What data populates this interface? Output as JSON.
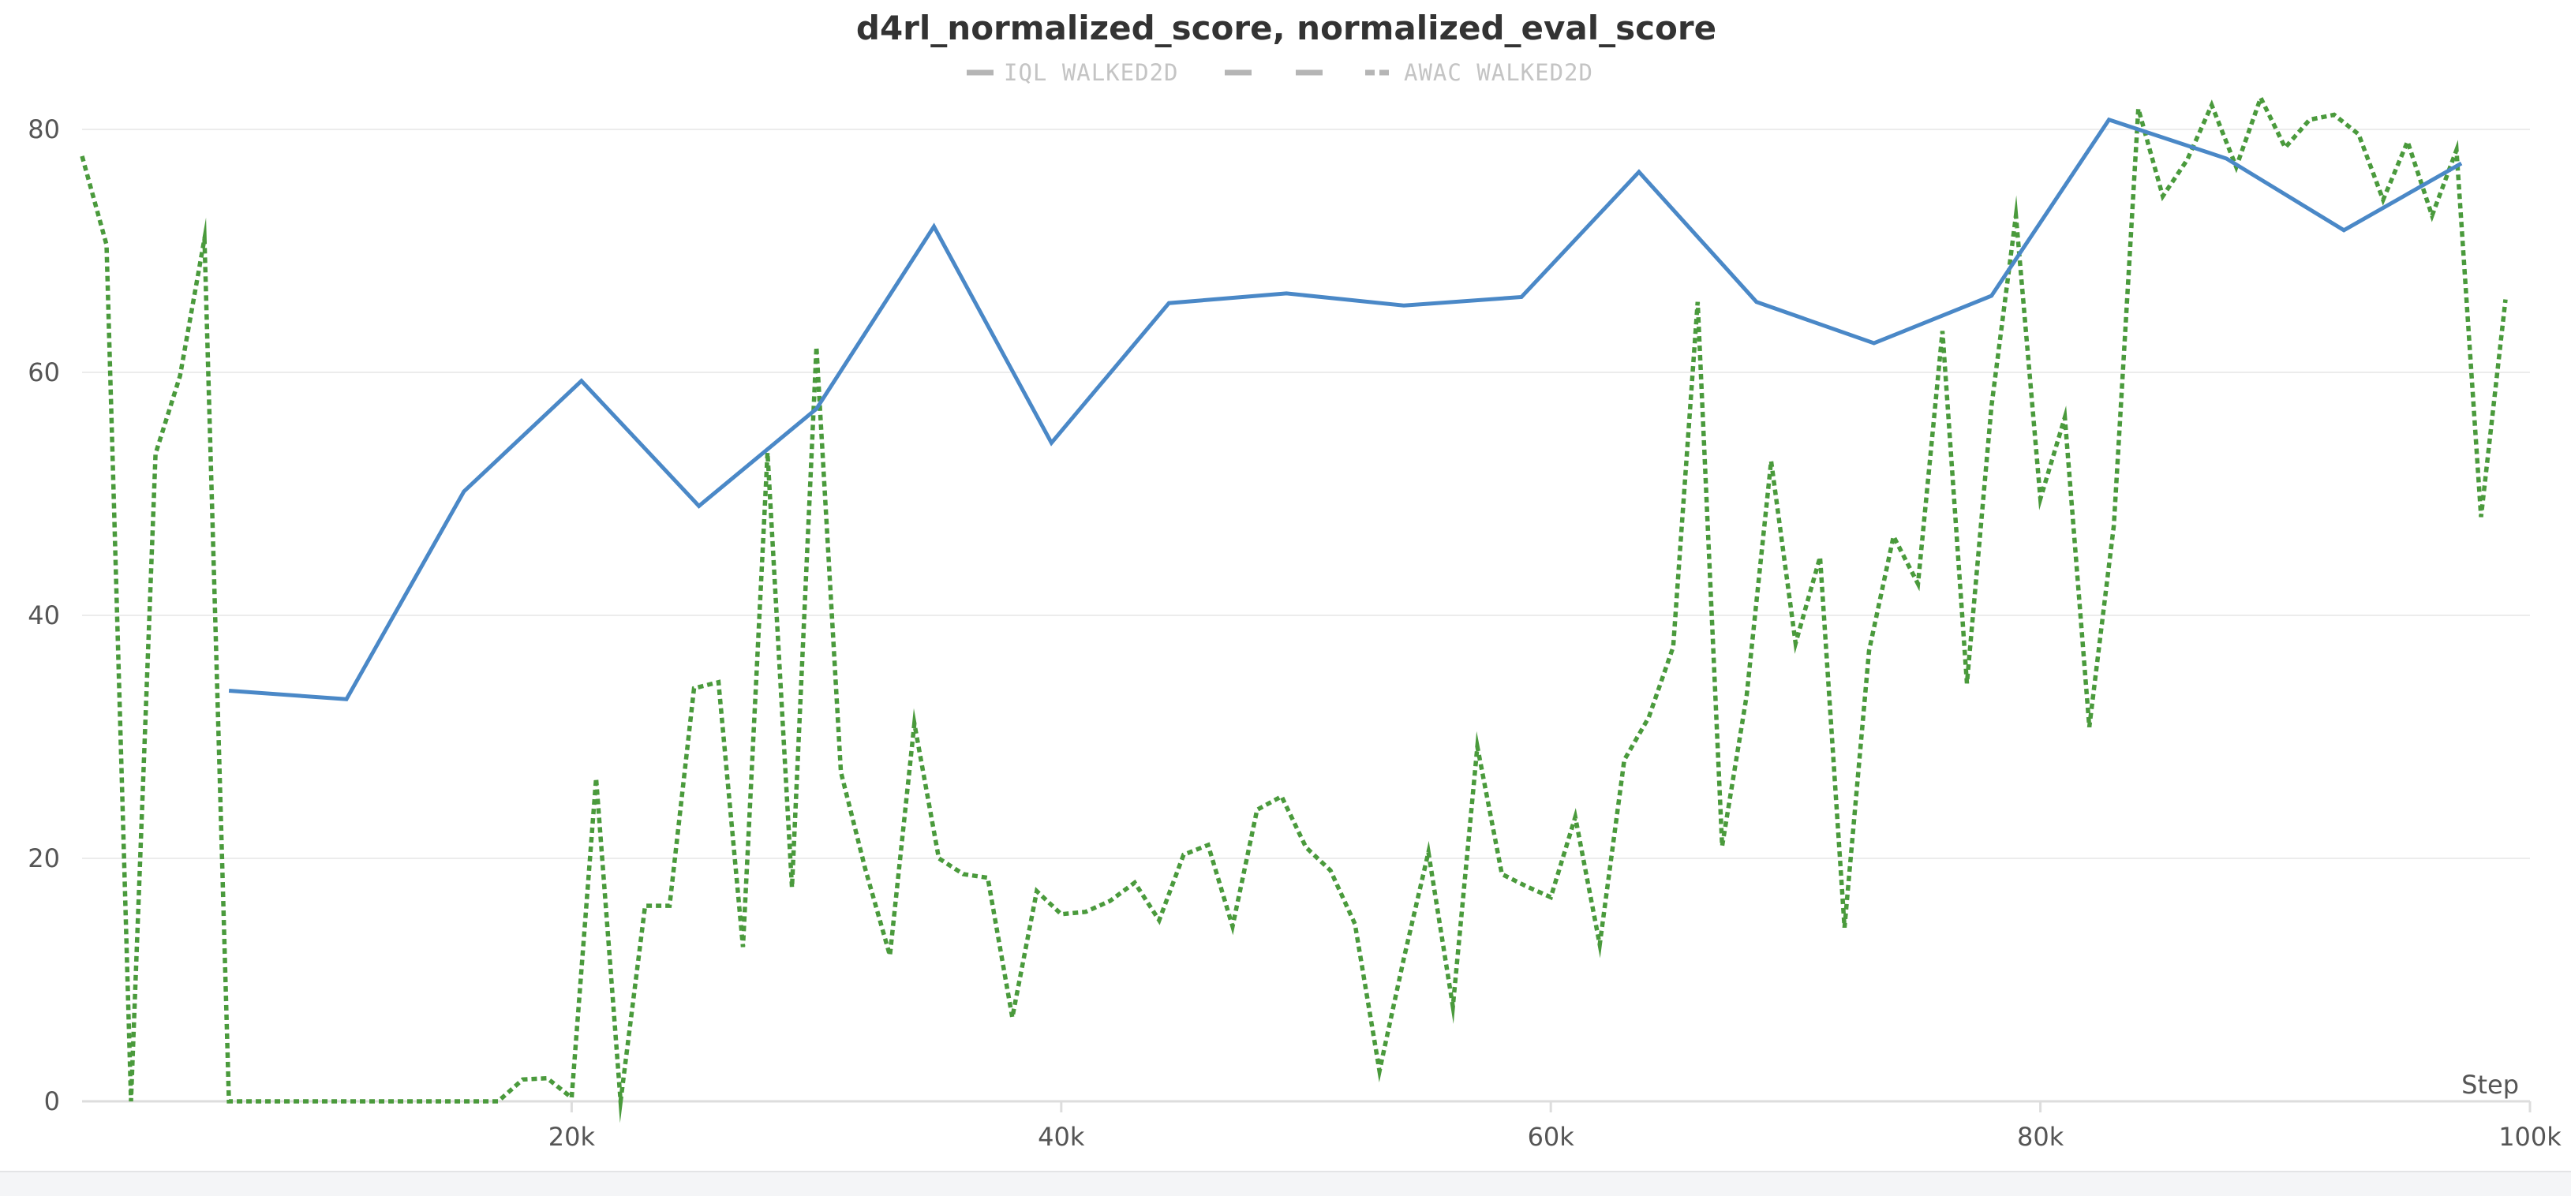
{
  "chart_data": {
    "type": "line",
    "title": "d4rl_normalized_score, normalized_eval_score",
    "xlabel": "Step",
    "ylabel": "",
    "xlim": [
      0,
      100000
    ],
    "ylim": [
      0,
      80
    ],
    "x_ticks": [
      20000,
      40000,
      60000,
      80000,
      100000
    ],
    "x_tick_labels": [
      "20k",
      "40k",
      "60k",
      "80k",
      "100k"
    ],
    "y_ticks": [
      0,
      20,
      40,
      60,
      80
    ],
    "y_tick_labels": [
      "0",
      "20",
      "40",
      "60",
      "80"
    ],
    "grid": true,
    "legend_position": "top-center",
    "legend": [
      {
        "label": "IQL WALKED2D",
        "dash": "solid"
      },
      {
        "label": "",
        "dash": "dashed"
      },
      {
        "label": "",
        "dash": "dashed"
      },
      {
        "label": "AWAC WALKED2D",
        "dash": "dotted"
      }
    ],
    "series": [
      {
        "name": "IQL WALKED2D",
        "color": "#4a88c7",
        "dash": "solid",
        "x": [
          6000,
          10800,
          15600,
          20400,
          25200,
          30000,
          34800,
          39600,
          44400,
          49200,
          54000,
          58800,
          63600,
          68400,
          73200,
          78000,
          82800,
          87600,
          92400,
          97200
        ],
        "y": [
          33.8,
          33.1,
          50.2,
          59.3,
          49.0,
          57.0,
          72.0,
          54.2,
          65.7,
          66.5,
          65.5,
          66.2,
          76.5,
          65.8,
          62.4,
          66.3,
          80.8,
          77.6,
          71.7,
          77.2
        ]
      },
      {
        "name": "AWAC WALKED2D",
        "color": "#4a9a3c",
        "dash": "dotted",
        "x": [
          0,
          1000,
          2000,
          3000,
          4000,
          5000,
          6000,
          7000,
          8000,
          9000,
          10000,
          11000,
          12000,
          13000,
          14000,
          15000,
          16000,
          17000,
          18000,
          19000,
          20000,
          21000,
          22000,
          23000,
          24000,
          25000,
          26000,
          27000,
          28000,
          29000,
          30000,
          31000,
          32000,
          33000,
          34000,
          35000,
          36000,
          37000,
          38000,
          39000,
          40000,
          41000,
          42000,
          43000,
          44000,
          45000,
          46000,
          47000,
          48000,
          49000,
          50000,
          51000,
          52000,
          53000,
          54000,
          55000,
          56000,
          57000,
          58000,
          59000,
          60000,
          61000,
          62000,
          63000,
          64000,
          65000,
          66000,
          67000,
          68000,
          69000,
          70000,
          71000,
          72000,
          73000,
          74000,
          75000,
          76000,
          77000,
          78000,
          79000,
          80000,
          81000,
          82000,
          83000,
          84000,
          85000,
          86000,
          87000,
          88000,
          89000,
          90000,
          91000,
          92000,
          93000,
          94000,
          95000,
          96000,
          97000,
          98000,
          99000
        ],
        "y": [
          77.8,
          70.5,
          0.0,
          53.3,
          59.7,
          71.0,
          0.0,
          0.0,
          0.0,
          0.0,
          0.0,
          0.0,
          0.0,
          0.0,
          0.0,
          0.0,
          0.0,
          0.0,
          1.8,
          1.9,
          0.3,
          26.6,
          0.0,
          16.1,
          16.1,
          34.0,
          34.5,
          12.7,
          53.4,
          17.6,
          62.1,
          27.1,
          19.1,
          12.0,
          31.1,
          20.0,
          18.7,
          18.4,
          6.9,
          17.3,
          15.4,
          15.6,
          16.5,
          18.0,
          14.9,
          20.3,
          21.1,
          14.4,
          24.0,
          25.1,
          20.9,
          19.0,
          14.6,
          2.5,
          11.8,
          20.5,
          7.8,
          29.2,
          18.7,
          17.7,
          16.8,
          23.4,
          12.9,
          28.1,
          31.6,
          37.4,
          65.8,
          21.0,
          33.4,
          52.7,
          37.7,
          44.8,
          14.3,
          37.1,
          46.5,
          42.6,
          63.4,
          34.4,
          57.2,
          72.9,
          49.6,
          56.3,
          30.8,
          47.4,
          81.7,
          74.5,
          77.5,
          82.0,
          76.9,
          82.6,
          78.5,
          80.8,
          81.2,
          79.6,
          74.2,
          79.0,
          72.9,
          78.3,
          48.1,
          66.0
        ]
      }
    ]
  }
}
